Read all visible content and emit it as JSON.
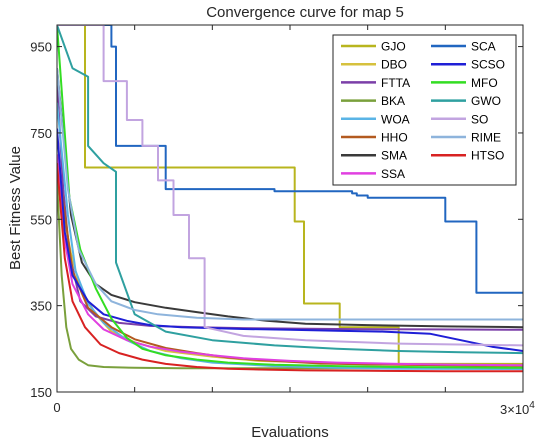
{
  "chart_data": {
    "type": "line",
    "title": "Convergence curve for map 5",
    "xlabel": "Evaluations",
    "ylabel": "Best Fitness Value",
    "xlim": [
      0,
      30000
    ],
    "ylim": [
      150,
      1000
    ],
    "x_ticks": [
      {
        "value": 0,
        "label": "0"
      }
    ],
    "x_multiplier_label": "3×10^4",
    "y_ticks": [
      {
        "value": 150,
        "label": "150"
      },
      {
        "value": 350,
        "label": "350"
      },
      {
        "value": 550,
        "label": "550"
      },
      {
        "value": 750,
        "label": "750"
      },
      {
        "value": 950,
        "label": "950"
      }
    ],
    "grid": false,
    "legend_position": "top-right",
    "series": [
      {
        "name": "GJO",
        "color": "#b8b51e",
        "x": [
          0,
          1800,
          1800,
          15300,
          15300,
          15900,
          15900,
          18200,
          18200,
          22000,
          22000,
          30000
        ],
        "y": [
          1000,
          1000,
          670,
          670,
          545,
          545,
          355,
          355,
          300,
          300,
          215,
          215
        ]
      },
      {
        "name": "DBO",
        "color": "#d6c13e",
        "x": [
          0,
          900,
          1500,
          2500,
          3500,
          5000,
          7000,
          10000,
          13000,
          17000,
          21000,
          25000,
          30000
        ],
        "y": [
          640,
          470,
          390,
          330,
          290,
          265,
          245,
          232,
          222,
          218,
          214,
          212,
          210
        ]
      },
      {
        "name": "FTTA",
        "color": "#7b3fa8",
        "x": [
          0,
          400,
          800,
          1500,
          2500,
          4000,
          6000,
          9000,
          12000,
          18000,
          24000,
          30000
        ],
        "y": [
          870,
          620,
          470,
          360,
          325,
          310,
          303,
          300,
          298,
          296,
          295,
          294
        ]
      },
      {
        "name": "BKA",
        "color": "#7aa03c",
        "x": [
          0,
          300,
          600,
          900,
          1400,
          2000,
          3000,
          5000,
          8000,
          12000,
          18000,
          24000,
          30000
        ],
        "y": [
          640,
          420,
          300,
          250,
          225,
          212,
          208,
          206,
          205,
          205,
          205,
          205,
          205
        ]
      },
      {
        "name": "WOA",
        "color": "#5ab4e6",
        "x": [
          0,
          700,
          1200,
          2000,
          3000,
          4500,
          6000,
          8000,
          10000,
          14000,
          18000,
          22000,
          30000
        ],
        "y": [
          820,
          560,
          430,
          355,
          310,
          270,
          245,
          228,
          218,
          210,
          206,
          204,
          203
        ]
      },
      {
        "name": "HHO",
        "color": "#b35a20",
        "x": [
          0,
          1000,
          2000,
          3500,
          5000,
          7000,
          9000,
          11000,
          13000,
          15000,
          17000,
          20000,
          25000,
          30000
        ],
        "y": [
          700,
          430,
          345,
          300,
          272,
          252,
          240,
          230,
          224,
          220,
          216,
          214,
          212,
          211
        ]
      },
      {
        "name": "SMA",
        "color": "#3a3a3a",
        "x": [
          0,
          900,
          1600,
          2500,
          3500,
          5000,
          7000,
          9000,
          11000,
          13500,
          16000,
          20000,
          25000,
          30000
        ],
        "y": [
          900,
          560,
          450,
          400,
          375,
          358,
          345,
          335,
          325,
          315,
          308,
          305,
          302,
          300
        ]
      },
      {
        "name": "SSA",
        "color": "#e040e0",
        "x": [
          0,
          500,
          1000,
          2000,
          3000,
          4500,
          6000,
          8000,
          10000,
          12000,
          15000,
          18000,
          22000,
          26000,
          30000
        ],
        "y": [
          700,
          500,
          400,
          330,
          295,
          270,
          255,
          243,
          235,
          228,
          222,
          218,
          215,
          213,
          212
        ]
      },
      {
        "name": "SCA",
        "color": "#2166c0",
        "x": [
          0,
          3500,
          3500,
          3800,
          3800,
          7000,
          7000,
          14000,
          14000,
          19000,
          19000,
          19300,
          19300,
          20000,
          20000,
          25000,
          25000,
          27000,
          27000,
          30000
        ],
        "y": [
          1000,
          1000,
          950,
          950,
          720,
          720,
          620,
          620,
          615,
          615,
          610,
          610,
          605,
          605,
          600,
          600,
          545,
          545,
          380,
          380
        ]
      },
      {
        "name": "SCSO",
        "color": "#1f1fd6",
        "x": [
          0,
          500,
          1000,
          2000,
          3000,
          4500,
          6000,
          8000,
          10000,
          12000,
          15000,
          18000,
          21000,
          24000,
          26000,
          28000,
          30000
        ],
        "y": [
          760,
          520,
          420,
          360,
          330,
          315,
          305,
          300,
          298,
          296,
          294,
          292,
          290,
          285,
          270,
          255,
          245
        ]
      },
      {
        "name": "MFO",
        "color": "#33dd22",
        "x": [
          0,
          800,
          1500,
          2500,
          3500,
          4500,
          5500,
          7000,
          9000,
          11000,
          14000,
          18000,
          22000,
          26000,
          30000
        ],
        "y": [
          1000,
          600,
          480,
          390,
          320,
          275,
          250,
          235,
          225,
          218,
          213,
          210,
          208,
          207,
          206
        ]
      },
      {
        "name": "GWO",
        "color": "#2fa0a0",
        "x": [
          0,
          1000,
          2000,
          2000,
          3000,
          3800,
          3800,
          5000,
          7000,
          10000,
          14000,
          18000,
          22000,
          26000,
          30000
        ],
        "y": [
          1000,
          900,
          880,
          720,
          680,
          660,
          450,
          330,
          290,
          270,
          258,
          250,
          245,
          242,
          240
        ]
      },
      {
        "name": "SO",
        "color": "#c2a4e0",
        "x": [
          0,
          3000,
          3000,
          4500,
          4500,
          5500,
          5500,
          6500,
          6500,
          7500,
          7500,
          8500,
          8500,
          9500,
          9500,
          12000,
          16000,
          22000,
          30000
        ],
        "y": [
          1000,
          1000,
          870,
          870,
          780,
          780,
          720,
          720,
          640,
          640,
          560,
          560,
          460,
          460,
          300,
          280,
          270,
          262,
          258
        ]
      },
      {
        "name": "RIME",
        "color": "#8eb4dc",
        "x": [
          0,
          700,
          1400,
          2500,
          3500,
          5000,
          6500,
          8000,
          9000,
          10500,
          12000,
          15000,
          20000,
          25000,
          30000
        ],
        "y": [
          900,
          620,
          480,
          400,
          360,
          340,
          330,
          325,
          322,
          320,
          318,
          318,
          318,
          318,
          318
        ]
      },
      {
        "name": "HTSO",
        "color": "#d82222",
        "x": [
          0,
          500,
          1000,
          1800,
          2800,
          4000,
          5500,
          7000,
          9000,
          11000,
          13000,
          16000,
          20000,
          25000,
          30000
        ],
        "y": [
          680,
          460,
          360,
          300,
          260,
          240,
          225,
          215,
          208,
          204,
          202,
          200,
          199,
          198,
          198
        ]
      }
    ]
  }
}
